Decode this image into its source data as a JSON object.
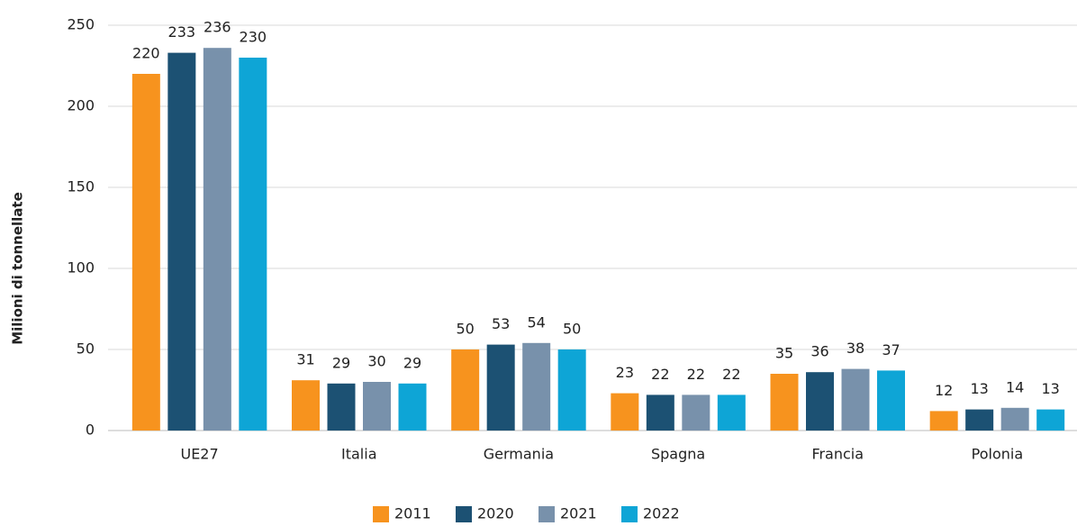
{
  "chart_data": {
    "type": "bar",
    "y_label": "Milioni di tonnellate",
    "categories": [
      "UE27",
      "Italia",
      "Germania",
      "Spagna",
      "Francia",
      "Polonia"
    ],
    "series": [
      {
        "name": "2011",
        "color": "#f7931e",
        "values": [
          220,
          31,
          50,
          23,
          35,
          12
        ]
      },
      {
        "name": "2020",
        "color": "#1c5173",
        "values": [
          233,
          29,
          53,
          22,
          36,
          13
        ]
      },
      {
        "name": "2021",
        "color": "#7891ab",
        "values": [
          236,
          30,
          54,
          22,
          38,
          14
        ]
      },
      {
        "name": "2022",
        "color": "#0ea5d6",
        "values": [
          230,
          29,
          50,
          22,
          37,
          13
        ]
      }
    ],
    "ylim": [
      0,
      250
    ],
    "yticks": [
      0,
      50,
      100,
      150,
      200,
      250
    ],
    "grid": true,
    "legend": "bottom"
  }
}
